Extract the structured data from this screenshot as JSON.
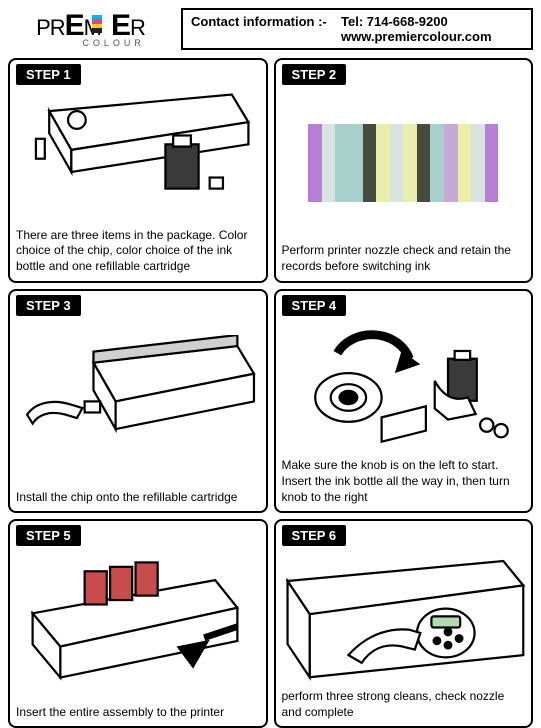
{
  "header": {
    "logo_brand": "PREMIER",
    "logo_subtext": "COLOUR",
    "contact_label": "Contact information :-",
    "tel_label": "Tel: ",
    "tel_value": "714-668-9200",
    "web_value": "www.premiercolour.com",
    "logo_stripes": [
      "#00b7eb",
      "#e53ea0",
      "#f9d400",
      "#222222"
    ]
  },
  "steps": [
    {
      "label": "STEP 1",
      "caption": "There are three items in the package. Color choice of the chip, color choice of the ink bottle and one refillable cartridge"
    },
    {
      "label": "STEP  2",
      "caption": "Perform printer nozzle check and retain the records before switching ink"
    },
    {
      "label": "STEP 3",
      "caption": "Install the chip onto the refillable cartridge"
    },
    {
      "label": "STEP  4",
      "caption": "Make sure the knob is on the left to start. Insert the ink bottle all the way in, then turn knob to the right"
    },
    {
      "label": "STEP  5",
      "caption": "Insert the entire assembly to the printer"
    },
    {
      "label": "STEP  6",
      "caption": "perform three strong cleans, check nozzle and complete"
    }
  ],
  "nozzle_colors": [
    "#b77fd6",
    "#d7e3e0",
    "#a7d0cc",
    "#a7d0cc",
    "#474b3e",
    "#e9eea8",
    "#d7e3e0",
    "#e9eea8",
    "#474b3e",
    "#a7d0cc",
    "#c7a9d8",
    "#e9eea8",
    "#d7e3e0",
    "#b77fd6"
  ],
  "palette": {
    "border": "#000000",
    "text": "#000000",
    "bg": "#ffffff",
    "badge_bg": "#000000",
    "badge_fg": "#ffffff"
  }
}
